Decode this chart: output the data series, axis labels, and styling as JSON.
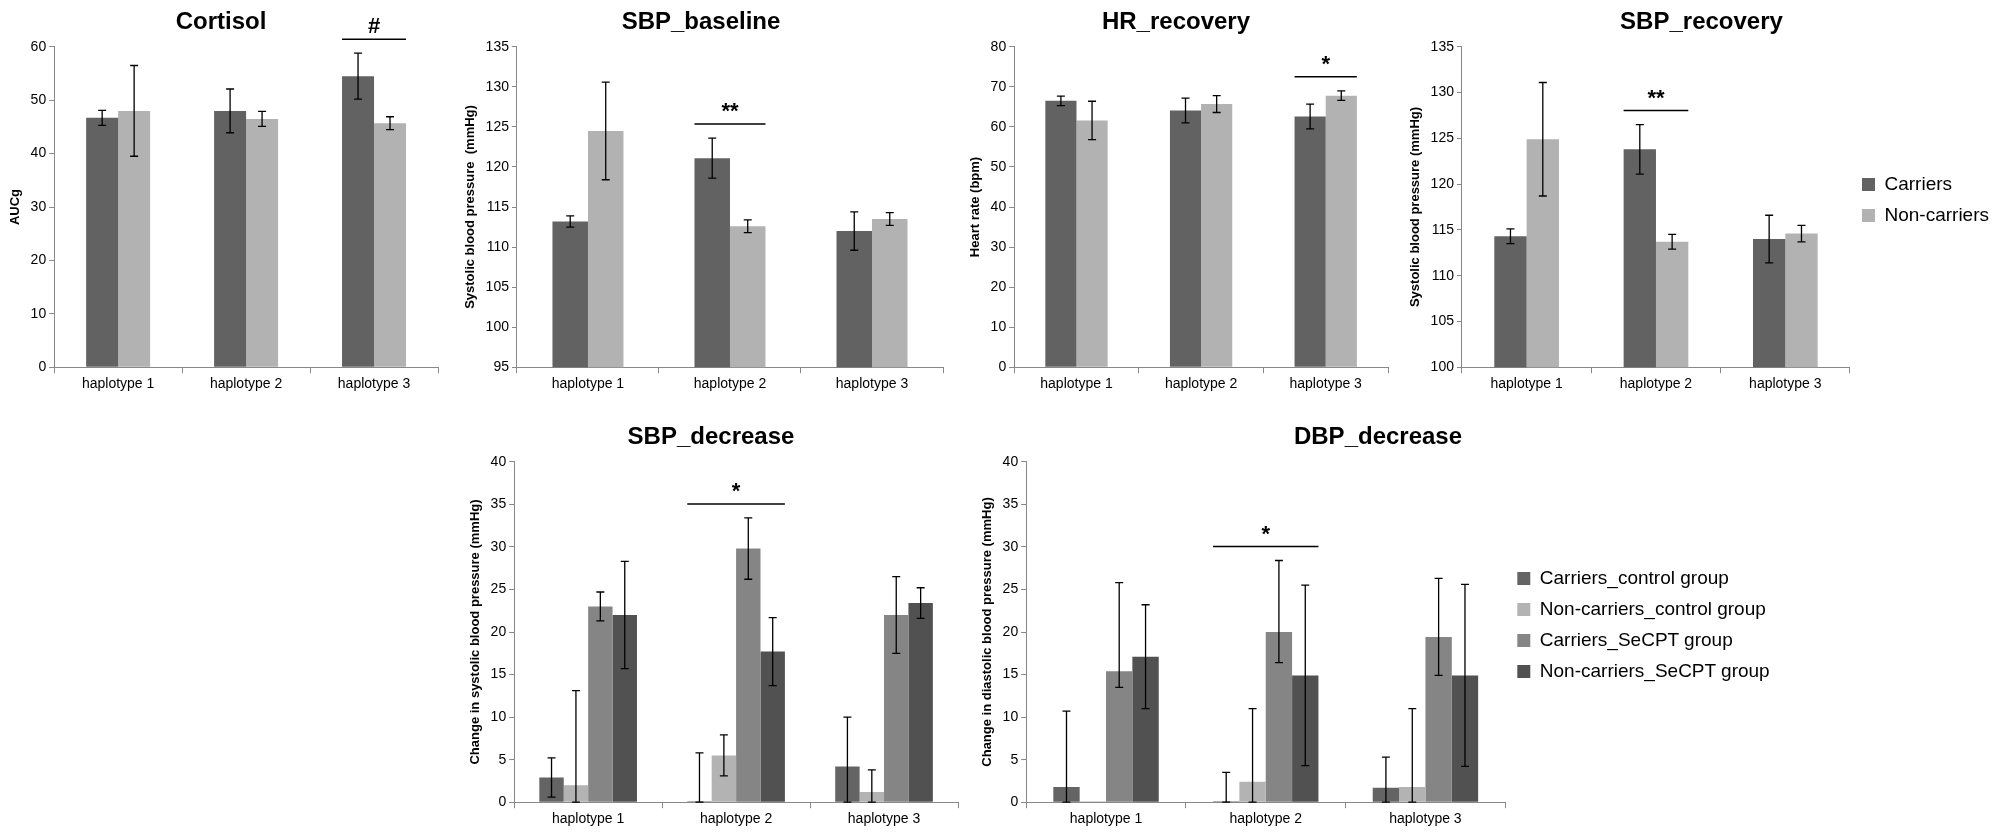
{
  "chart_data": [
    {
      "type": "bar",
      "title": "Cortisol",
      "ylabel": "AUCg",
      "categories": [
        "haplotype 1",
        "haplotype 2",
        "haplotype 3"
      ],
      "series": [
        {
          "color": "#626262",
          "values": [
            46.7,
            48.0,
            54.5
          ],
          "errors": [
            1.4,
            4.1,
            4.3
          ]
        },
        {
          "color": "#b2b2b2",
          "values": [
            48.0,
            46.5,
            45.7
          ],
          "errors": [
            8.5,
            1.4,
            1.2
          ]
        }
      ],
      "ylim": [
        0,
        60
      ],
      "yticks": [
        0,
        10,
        20,
        30,
        40,
        50,
        60
      ],
      "legend": false,
      "annotations": [
        {
          "text": "#",
          "x": "haplotype 3",
          "y": 54.5
        }
      ]
    },
    {
      "type": "bar",
      "title": "SBP_baseline",
      "ylabel": "Systolic blood pressure  (mmHg)",
      "categories": [
        "haplotype 1",
        "haplotype 2",
        "haplotype 3"
      ],
      "series": [
        {
          "color": "#626262",
          "values": [
            113.2,
            121.1,
            112.0
          ],
          "errors": [
            0.7,
            2.5,
            2.4
          ]
        },
        {
          "color": "#b2b2b2",
          "values": [
            124.5,
            112.6,
            113.5
          ],
          "errors": [
            6.1,
            0.8,
            0.8
          ]
        }
      ],
      "ylim": [
        95,
        135
      ],
      "yticks": [
        95,
        100,
        105,
        110,
        115,
        120,
        125,
        130,
        135
      ],
      "legend": false,
      "annotations": [
        {
          "text": "**",
          "x": "haplotype 2",
          "y": 121.1
        }
      ]
    },
    {
      "type": "bar",
      "title": "HR_recovery",
      "ylabel": "Heart rate (bpm)",
      "categories": [
        "haplotype 1",
        "haplotype 2",
        "haplotype 3"
      ],
      "series": [
        {
          "color": "#626262",
          "values": [
            66.5,
            64.1,
            62.6
          ],
          "errors": [
            1.2,
            3.1,
            3.1
          ]
        },
        {
          "color": "#b2b2b2",
          "values": [
            61.6,
            65.7,
            67.8
          ],
          "errors": [
            4.8,
            2.1,
            1.2
          ]
        }
      ],
      "ylim": [
        0,
        80
      ],
      "yticks": [
        0,
        10,
        20,
        30,
        40,
        50,
        60,
        70,
        80
      ],
      "legend": false,
      "annotations": [
        {
          "text": "*",
          "x": "haplotype 3",
          "y": 67.8
        }
      ]
    },
    {
      "type": "bar",
      "title": "SBP_recovery",
      "ylabel": "Systolic blood pressure (mmHg)",
      "categories": [
        "haplotype 1",
        "haplotype 2",
        "haplotype 3"
      ],
      "series": [
        {
          "name": "Carriers",
          "color": "#626262",
          "values": [
            114.3,
            123.8,
            114.0
          ],
          "errors": [
            0.8,
            2.7,
            2.6
          ]
        },
        {
          "name": "Non-carriers",
          "color": "#b2b2b2",
          "values": [
            124.9,
            113.7,
            114.6
          ],
          "errors": [
            6.2,
            0.8,
            0.9
          ]
        }
      ],
      "ylim": [
        100,
        135
      ],
      "yticks": [
        100,
        105,
        110,
        115,
        120,
        125,
        130,
        135
      ],
      "legend": "right",
      "annotations": [
        {
          "text": "**",
          "x": "haplotype 2",
          "y": 123.8
        }
      ]
    },
    {
      "type": "bar",
      "title": "SBP_decrease",
      "ylabel": "Change in systolic blood pressure (mmHg)",
      "categories": [
        "haplotype 1",
        "haplotype 2",
        "haplotype 3"
      ],
      "series": [
        {
          "color": "#646464",
          "values": [
            2.9,
            0,
            4.2
          ],
          "errors": [
            2.3,
            [
              0,
              5.8
            ],
            [
              0,
              10.0
            ]
          ]
        },
        {
          "color": "#b3b3b3",
          "values": [
            2.0,
            5.5,
            1.2
          ],
          "errors": [
            [
              0,
              13.1
            ],
            2.4,
            [
              0,
              3.8
            ]
          ]
        },
        {
          "color": "#858585",
          "values": [
            23.0,
            29.8,
            22.0
          ],
          "errors": [
            1.7,
            3.6,
            4.5
          ]
        },
        {
          "color": "#515151",
          "values": [
            22.0,
            17.7,
            23.4
          ],
          "errors": [
            6.3,
            4.0,
            1.8
          ]
        }
      ],
      "ylim": [
        0,
        40
      ],
      "yticks": [
        0,
        5,
        10,
        15,
        20,
        25,
        30,
        35,
        40
      ],
      "legend": false,
      "annotations": [
        {
          "text": "*",
          "x": "haplotype 2",
          "y": 29.8
        }
      ]
    },
    {
      "type": "bar",
      "title": "DBP_decrease",
      "ylabel": "Change in diastolic blood pressure (mmHg)",
      "categories": [
        "haplotype 1",
        "haplotype 2",
        "haplotype 3"
      ],
      "series": [
        {
          "name": "Carriers_control group",
          "color": "#646464",
          "values": [
            1.8,
            0,
            1.7
          ],
          "errors": [
            [
              0,
              10.7
            ],
            [
              0,
              3.5
            ],
            [
              0,
              5.3
            ]
          ]
        },
        {
          "name": "Non-carriers_control group",
          "color": "#b3b3b3",
          "values": [
            0,
            2.4,
            1.8
          ],
          "errors": [
            null,
            [
              0,
              11.0
            ],
            [
              0,
              11.0
            ]
          ]
        },
        {
          "name": "Carriers_SeCPT group",
          "color": "#858585",
          "values": [
            15.4,
            20.0,
            19.4
          ],
          "errors": [
            [
              13.5,
              25.8
            ],
            [
              16.4,
              28.4
            ],
            [
              14.9,
              26.3
            ]
          ]
        },
        {
          "name": "Non-carriers_SeCPT group",
          "color": "#515151",
          "values": [
            17.1,
            14.9,
            14.9
          ],
          "errors": [
            6.1,
            10.6,
            10.7
          ]
        }
      ],
      "ylim": [
        0,
        40
      ],
      "yticks": [
        0,
        5,
        10,
        15,
        20,
        25,
        30,
        35,
        40
      ],
      "legend": "right",
      "annotations": [
        "*"
      ]
    }
  ]
}
